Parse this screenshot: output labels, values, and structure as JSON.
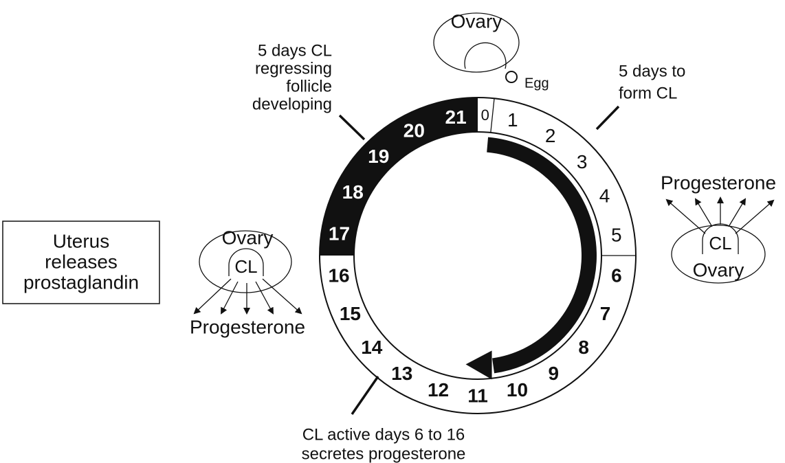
{
  "top_ovary": {
    "label": "Ovary"
  },
  "egg": "Egg",
  "cycle_days": [
    0,
    1,
    2,
    3,
    4,
    5,
    6,
    7,
    8,
    9,
    10,
    11,
    12,
    13,
    14,
    15,
    16,
    17,
    18,
    19,
    20,
    21
  ],
  "annotations": {
    "regressing": [
      "5 days CL",
      "regressing",
      "follicle",
      "developing"
    ],
    "form_cl": [
      "5 days to",
      "form CL"
    ],
    "active": [
      "CL active days 6 to 16",
      "secretes progesterone"
    ]
  },
  "right_ovary": {
    "hormone": "Progesterone",
    "cl": "CL",
    "label": "Ovary"
  },
  "left_ovary": {
    "label": "Ovary",
    "cl": "CL",
    "hormone": "Progesterone"
  },
  "uterus_box": [
    "Uterus",
    "releases",
    "prostaglandin"
  ]
}
